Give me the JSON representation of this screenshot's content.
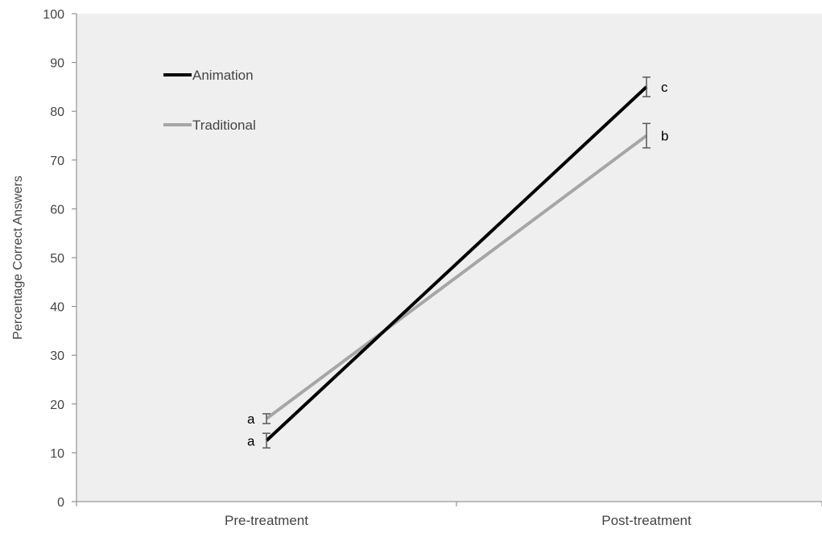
{
  "chart_data": {
    "type": "line",
    "title": "",
    "xlabel": "",
    "ylabel": "Percentage Correct Answers",
    "categories": [
      "Pre-treatment",
      "Post-treatment"
    ],
    "ylim": [
      0,
      100
    ],
    "yticks": [
      0,
      10,
      20,
      30,
      40,
      50,
      60,
      70,
      80,
      90,
      100
    ],
    "grid": false,
    "legend_position": "top-left",
    "plot_background": "#efefef",
    "series": [
      {
        "name": "Animation",
        "color": "#000000",
        "values": [
          12.5,
          85
        ],
        "error": [
          1.5,
          2
        ],
        "letters": [
          "a",
          "c"
        ]
      },
      {
        "name": "Traditional",
        "color": "#a6a6a6",
        "values": [
          17,
          75
        ],
        "error": [
          1,
          2.5
        ],
        "letters": [
          "a",
          "b"
        ]
      }
    ]
  }
}
